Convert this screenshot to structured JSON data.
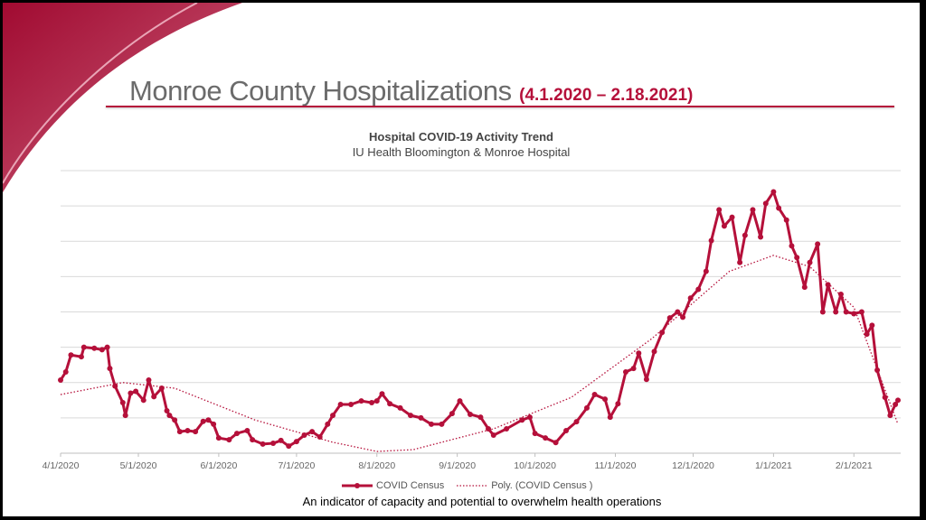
{
  "slide": {
    "title": "Monroe County Hospitalizations",
    "title_dates": "(4.1.2020 – 2.18.2021)",
    "footnote": "An indicator of capacity and potential to overwhelm health operations",
    "accent_color": "#b5103a"
  },
  "chart_data": {
    "type": "line",
    "title": "Hospital COVID-19 Activity Trend",
    "subtitle": "IU Health Bloomington & Monroe Hospital",
    "x_tick_labels": [
      "4/1/2020",
      "5/1/2020",
      "6/1/2020",
      "7/1/2020",
      "8/1/2020",
      "9/1/2020",
      "10/1/2020",
      "11/1/2020",
      "12/1/2020",
      "1/1/2021",
      "2/1/2021"
    ],
    "x_ticks": [
      "2020-04-01",
      "2020-05-01",
      "2020-06-01",
      "2020-07-01",
      "2020-08-01",
      "2020-09-01",
      "2020-10-01",
      "2020-11-01",
      "2020-12-01",
      "2021-01-01",
      "2021-02-01"
    ],
    "xlim": [
      "2020-04-01",
      "2021-02-18"
    ],
    "y_axis_labels_shown": false,
    "ylim": [
      0,
      8
    ],
    "y_gridlines": 8,
    "grid": true,
    "legend_placement": "bottom",
    "series": [
      {
        "name": "COVID Census",
        "color": "#b5103a",
        "style": "solid-with-markers",
        "points": [
          [
            "2020-04-01",
            2.07
          ],
          [
            "2020-04-03",
            2.3
          ],
          [
            "2020-04-05",
            2.78
          ],
          [
            "2020-04-09",
            2.73
          ],
          [
            "2020-04-10",
            3.0
          ],
          [
            "2020-04-14",
            2.97
          ],
          [
            "2020-04-17",
            2.93
          ],
          [
            "2020-04-19",
            3.0
          ],
          [
            "2020-04-20",
            2.4
          ],
          [
            "2020-04-22",
            1.9
          ],
          [
            "2020-04-25",
            1.43
          ],
          [
            "2020-04-26",
            1.07
          ],
          [
            "2020-04-28",
            1.7
          ],
          [
            "2020-04-30",
            1.75
          ],
          [
            "2020-05-03",
            1.5
          ],
          [
            "2020-05-05",
            2.07
          ],
          [
            "2020-05-07",
            1.6
          ],
          [
            "2020-05-10",
            1.84
          ],
          [
            "2020-05-12",
            1.2
          ],
          [
            "2020-05-13",
            1.07
          ],
          [
            "2020-05-15",
            0.94
          ],
          [
            "2020-05-17",
            0.61
          ],
          [
            "2020-05-20",
            0.64
          ],
          [
            "2020-05-23",
            0.61
          ],
          [
            "2020-05-26",
            0.9
          ],
          [
            "2020-05-28",
            0.94
          ],
          [
            "2020-05-30",
            0.82
          ],
          [
            "2020-06-01",
            0.43
          ],
          [
            "2020-06-05",
            0.38
          ],
          [
            "2020-06-08",
            0.56
          ],
          [
            "2020-06-12",
            0.64
          ],
          [
            "2020-06-14",
            0.38
          ],
          [
            "2020-06-18",
            0.26
          ],
          [
            "2020-06-22",
            0.28
          ],
          [
            "2020-06-25",
            0.36
          ],
          [
            "2020-06-28",
            0.2
          ],
          [
            "2020-07-01",
            0.33
          ],
          [
            "2020-07-04",
            0.51
          ],
          [
            "2020-07-07",
            0.61
          ],
          [
            "2020-07-10",
            0.46
          ],
          [
            "2020-07-13",
            0.82
          ],
          [
            "2020-07-15",
            1.07
          ],
          [
            "2020-07-18",
            1.38
          ],
          [
            "2020-07-22",
            1.38
          ],
          [
            "2020-07-26",
            1.48
          ],
          [
            "2020-07-30",
            1.43
          ],
          [
            "2020-08-01",
            1.48
          ],
          [
            "2020-08-03",
            1.68
          ],
          [
            "2020-08-06",
            1.4
          ],
          [
            "2020-08-10",
            1.28
          ],
          [
            "2020-08-14",
            1.07
          ],
          [
            "2020-08-18",
            1.0
          ],
          [
            "2020-08-22",
            0.82
          ],
          [
            "2020-08-26",
            0.82
          ],
          [
            "2020-08-30",
            1.12
          ],
          [
            "2020-09-02",
            1.48
          ],
          [
            "2020-09-06",
            1.1
          ],
          [
            "2020-09-10",
            1.02
          ],
          [
            "2020-09-13",
            0.69
          ],
          [
            "2020-09-15",
            0.51
          ],
          [
            "2020-09-20",
            0.69
          ],
          [
            "2020-09-26",
            0.94
          ],
          [
            "2020-09-29",
            1.02
          ],
          [
            "2020-10-01",
            0.56
          ],
          [
            "2020-10-05",
            0.43
          ],
          [
            "2020-10-09",
            0.3
          ],
          [
            "2020-10-13",
            0.64
          ],
          [
            "2020-10-17",
            0.89
          ],
          [
            "2020-10-21",
            1.28
          ],
          [
            "2020-10-24",
            1.66
          ],
          [
            "2020-10-28",
            1.53
          ],
          [
            "2020-10-30",
            1.02
          ],
          [
            "2020-11-02",
            1.4
          ],
          [
            "2020-11-05",
            2.3
          ],
          [
            "2020-11-08",
            2.4
          ],
          [
            "2020-11-10",
            2.83
          ],
          [
            "2020-11-13",
            2.09
          ],
          [
            "2020-11-16",
            2.88
          ],
          [
            "2020-11-19",
            3.42
          ],
          [
            "2020-11-22",
            3.83
          ],
          [
            "2020-11-25",
            4.0
          ],
          [
            "2020-11-27",
            3.85
          ],
          [
            "2020-11-30",
            4.39
          ],
          [
            "2020-12-03",
            4.64
          ],
          [
            "2020-12-06",
            5.15
          ],
          [
            "2020-12-08",
            6.02
          ],
          [
            "2020-12-11",
            6.89
          ],
          [
            "2020-12-13",
            6.43
          ],
          [
            "2020-12-16",
            6.68
          ],
          [
            "2020-12-19",
            5.4
          ],
          [
            "2020-12-21",
            6.17
          ],
          [
            "2020-12-24",
            6.89
          ],
          [
            "2020-12-27",
            6.12
          ],
          [
            "2020-12-29",
            7.07
          ],
          [
            "2021-01-01",
            7.4
          ],
          [
            "2021-01-03",
            6.94
          ],
          [
            "2021-01-06",
            6.6
          ],
          [
            "2021-01-08",
            5.87
          ],
          [
            "2021-01-10",
            5.54
          ],
          [
            "2021-01-13",
            4.7
          ],
          [
            "2021-01-15",
            5.4
          ],
          [
            "2021-01-18",
            5.92
          ],
          [
            "2021-01-20",
            4.0
          ],
          [
            "2021-01-22",
            4.77
          ],
          [
            "2021-01-25",
            4.0
          ],
          [
            "2021-01-27",
            4.5
          ],
          [
            "2021-01-29",
            4.0
          ],
          [
            "2021-02-01",
            3.95
          ],
          [
            "2021-02-04",
            4.0
          ],
          [
            "2021-02-06",
            3.37
          ],
          [
            "2021-02-08",
            3.62
          ],
          [
            "2021-02-10",
            2.35
          ],
          [
            "2021-02-13",
            1.58
          ],
          [
            "2021-02-15",
            1.07
          ],
          [
            "2021-02-17",
            1.38
          ],
          [
            "2021-02-18",
            1.5
          ]
        ]
      },
      {
        "name": "Poly. (COVID Census )",
        "color": "#b5103a",
        "style": "dotted",
        "points": [
          [
            "2020-04-01",
            1.66
          ],
          [
            "2020-04-25",
            2.0
          ],
          [
            "2020-05-15",
            1.84
          ],
          [
            "2020-06-15",
            0.94
          ],
          [
            "2020-07-15",
            0.31
          ],
          [
            "2020-08-01",
            0.05
          ],
          [
            "2020-08-15",
            0.1
          ],
          [
            "2020-09-15",
            0.69
          ],
          [
            "2020-10-15",
            1.58
          ],
          [
            "2020-11-15",
            3.24
          ],
          [
            "2020-12-15",
            5.15
          ],
          [
            "2021-01-01",
            5.6
          ],
          [
            "2021-01-15",
            5.28
          ],
          [
            "2021-02-01",
            4.13
          ],
          [
            "2021-02-18",
            0.82
          ]
        ]
      }
    ]
  }
}
